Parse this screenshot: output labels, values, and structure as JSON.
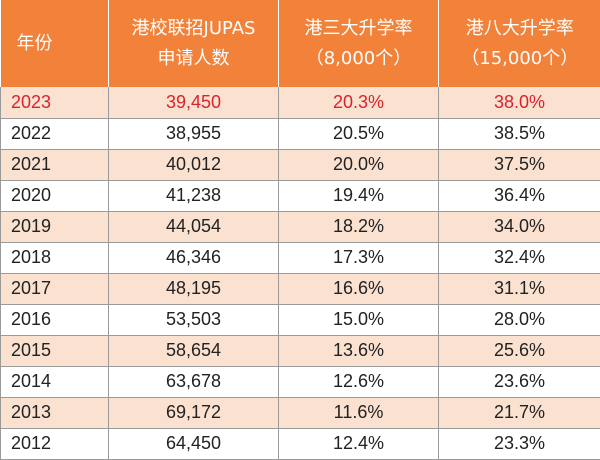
{
  "header": {
    "year": "年份",
    "applicants_line1": "港校联招JUPAS",
    "applicants_line2": "申请人数",
    "top3_line1": "港三大升学率",
    "top3_line2": "（8,000个）",
    "top8_line1": "港八大升学率",
    "top8_line2": "（15,000个）"
  },
  "rows": [
    {
      "year": "2023",
      "applicants": "39,450",
      "top3": "20.3%",
      "top8": "38.0%"
    },
    {
      "year": "2022",
      "applicants": "38,955",
      "top3": "20.5%",
      "top8": "38.5%"
    },
    {
      "year": "2021",
      "applicants": "40,012",
      "top3": "20.0%",
      "top8": "37.5%"
    },
    {
      "year": "2020",
      "applicants": "41,238",
      "top3": "19.4%",
      "top8": "36.4%"
    },
    {
      "year": "2019",
      "applicants": "44,054",
      "top3": "18.2%",
      "top8": "34.0%"
    },
    {
      "year": "2018",
      "applicants": "46,346",
      "top3": "17.3%",
      "top8": "32.4%"
    },
    {
      "year": "2017",
      "applicants": "48,195",
      "top3": "16.6%",
      "top8": "31.1%"
    },
    {
      "year": "2016",
      "applicants": "53,503",
      "top3": "15.0%",
      "top8": "28.0%"
    },
    {
      "year": "2015",
      "applicants": "58,654",
      "top3": "13.6%",
      "top8": "25.6%"
    },
    {
      "year": "2014",
      "applicants": "63,678",
      "top3": "12.6%",
      "top8": "23.6%"
    },
    {
      "year": "2013",
      "applicants": "69,172",
      "top3": "11.6%",
      "top8": "21.7%"
    },
    {
      "year": "2012",
      "applicants": "64,450",
      "top3": "12.4%",
      "top8": "23.3%"
    }
  ],
  "colors": {
    "header_bg": "#f2823a",
    "header_text": "#ffffff",
    "shade_row": "#fbe1d0",
    "highlight_text": "#d9232e"
  }
}
